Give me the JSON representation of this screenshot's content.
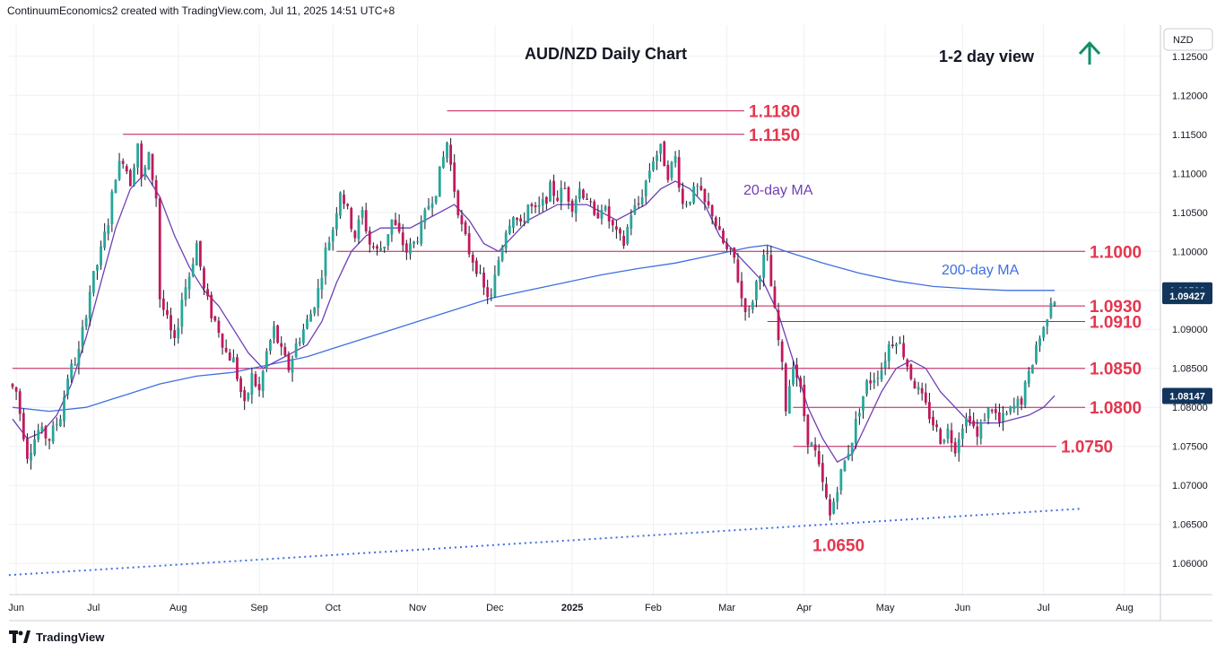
{
  "header": {
    "attribution": "ContinuumEconomics2 created with TradingView.com, Jul 11, 2025 14:51 UTC+8"
  },
  "footer": {
    "brand": "TradingView"
  },
  "colors": {
    "up": "#26a69a",
    "down": "#c2185b",
    "wick": "#131722",
    "level": "#c2185b",
    "level_text": "#e5364f",
    "ma20": "#6f3fb5",
    "ma200": "#3f6fe0",
    "trend": "#3f6fe0",
    "arrow": "#0f8f6a",
    "grid": "#eef0f3",
    "price_tag": "#12355b"
  },
  "chart_data": {
    "type": "candlestick",
    "title": "AUD/NZD Daily Chart",
    "view_label": "1-2 day view",
    "view_direction": "up",
    "currency": "NZD",
    "y_axis": {
      "ticks": [
        "1.12500",
        "1.12000",
        "1.11500",
        "1.11000",
        "1.10500",
        "1.10000",
        "1.09500",
        "1.09000",
        "1.08500",
        "1.08000",
        "1.07500",
        "1.07000",
        "1.06500",
        "1.06000"
      ],
      "range": [
        1.056,
        1.129
      ]
    },
    "x_axis": {
      "ticks": [
        {
          "label": "Jun",
          "index": 1
        },
        {
          "label": "Jul",
          "index": 22
        },
        {
          "label": "Aug",
          "index": 45
        },
        {
          "label": "Sep",
          "index": 67
        },
        {
          "label": "Oct",
          "index": 87
        },
        {
          "label": "Nov",
          "index": 110
        },
        {
          "label": "Dec",
          "index": 131
        },
        {
          "label": "2025",
          "index": 152
        },
        {
          "label": "Feb",
          "index": 174
        },
        {
          "label": "Mar",
          "index": 194
        },
        {
          "label": "Apr",
          "index": 215
        },
        {
          "label": "May",
          "index": 237
        },
        {
          "label": "Jun",
          "index": 258
        },
        {
          "label": "Jul",
          "index": 280
        },
        {
          "label": "Aug",
          "index": 302
        }
      ]
    },
    "levels": [
      {
        "label": "1.1180",
        "value": 1.118,
        "start_index": 118
      },
      {
        "label": "1.1150",
        "value": 1.115,
        "start_index": 30
      },
      {
        "label": "1.1000",
        "value": 1.1,
        "start_index": 88
      },
      {
        "label": "1.0930",
        "value": 1.093,
        "start_index": 131
      },
      {
        "label": "1.0910",
        "value": 1.091,
        "start_index": 205
      },
      {
        "label": "1.0850",
        "value": 1.085,
        "start_index": 0
      },
      {
        "label": "1.0800",
        "value": 1.08,
        "start_index": 212
      },
      {
        "label": "1.0750",
        "value": 1.075,
        "start_index": 212
      },
      {
        "label": "1.0650",
        "value": 1.065,
        "start_index": 226
      }
    ],
    "trendline": {
      "style": "dotted",
      "from": {
        "index": -1,
        "value": 1.0585
      },
      "to": {
        "index": 290,
        "value": 1.067
      }
    },
    "ma20_label": "20-day MA",
    "ma200_label": "200-day MA",
    "last_price": "1.09427",
    "ma20_last": "1.08147",
    "ma200_last": "1.09500",
    "anchors": [
      [
        0,
        1.083
      ],
      [
        2,
        1.082
      ],
      [
        5,
        1.074
      ],
      [
        8,
        1.077
      ],
      [
        11,
        1.076
      ],
      [
        14,
        1.079
      ],
      [
        16,
        1.084
      ],
      [
        19,
        1.087
      ],
      [
        22,
        1.095
      ],
      [
        25,
        1.1
      ],
      [
        27,
        1.104
      ],
      [
        29,
        1.11
      ],
      [
        31,
        1.112
      ],
      [
        33,
        1.109
      ],
      [
        35,
        1.114
      ],
      [
        36,
        1.109
      ],
      [
        38,
        1.112
      ],
      [
        40,
        1.107
      ],
      [
        41,
        1.094
      ],
      [
        43,
        1.091
      ],
      [
        45,
        1.088
      ],
      [
        47,
        1.094
      ],
      [
        49,
        1.097
      ],
      [
        51,
        1.101
      ],
      [
        53,
        1.095
      ],
      [
        55,
        1.092
      ],
      [
        57,
        1.09
      ],
      [
        59,
        1.087
      ],
      [
        61,
        1.086
      ],
      [
        63,
        1.082
      ],
      [
        64,
        1.08
      ],
      [
        66,
        1.084
      ],
      [
        68,
        1.082
      ],
      [
        70,
        1.087
      ],
      [
        72,
        1.09
      ],
      [
        74,
        1.087
      ],
      [
        76,
        1.085
      ],
      [
        78,
        1.088
      ],
      [
        80,
        1.09
      ],
      [
        82,
        1.092
      ],
      [
        84,
        1.095
      ],
      [
        86,
        1.1
      ],
      [
        88,
        1.103
      ],
      [
        90,
        1.108
      ],
      [
        92,
        1.105
      ],
      [
        94,
        1.102
      ],
      [
        96,
        1.105
      ],
      [
        98,
        1.101
      ],
      [
        100,
        1.1
      ],
      [
        102,
        1.101
      ],
      [
        104,
        1.104
      ],
      [
        106,
        1.102
      ],
      [
        108,
        1.1
      ],
      [
        110,
        1.101
      ],
      [
        112,
        1.103
      ],
      [
        114,
        1.106
      ],
      [
        116,
        1.108
      ],
      [
        118,
        1.112
      ],
      [
        119,
        1.114
      ],
      [
        121,
        1.108
      ],
      [
        123,
        1.103
      ],
      [
        125,
        1.1
      ],
      [
        127,
        1.098
      ],
      [
        129,
        1.095
      ],
      [
        131,
        1.094
      ],
      [
        133,
        1.099
      ],
      [
        135,
        1.103
      ],
      [
        137,
        1.105
      ],
      [
        139,
        1.103
      ],
      [
        141,
        1.106
      ],
      [
        143,
        1.105
      ],
      [
        145,
        1.106
      ],
      [
        147,
        1.108
      ],
      [
        149,
        1.107
      ],
      [
        151,
        1.108
      ],
      [
        153,
        1.106
      ],
      [
        155,
        1.108
      ],
      [
        157,
        1.107
      ],
      [
        159,
        1.104
      ],
      [
        161,
        1.106
      ],
      [
        163,
        1.104
      ],
      [
        165,
        1.102
      ],
      [
        167,
        1.101
      ],
      [
        169,
        1.105
      ],
      [
        171,
        1.106
      ],
      [
        173,
        1.109
      ],
      [
        175,
        1.112
      ],
      [
        177,
        1.113
      ],
      [
        179,
        1.11
      ],
      [
        181,
        1.112
      ],
      [
        183,
        1.106
      ],
      [
        185,
        1.107
      ],
      [
        187,
        1.108
      ],
      [
        189,
        1.106
      ],
      [
        191,
        1.105
      ],
      [
        193,
        1.102
      ],
      [
        195,
        1.1
      ],
      [
        197,
        1.099
      ],
      [
        199,
        1.094
      ],
      [
        201,
        1.092
      ],
      [
        203,
        1.096
      ],
      [
        205,
        1.099
      ],
      [
        206,
        1.099
      ],
      [
        208,
        1.092
      ],
      [
        210,
        1.085
      ],
      [
        211,
        1.08
      ],
      [
        213,
        1.086
      ],
      [
        215,
        1.082
      ],
      [
        217,
        1.076
      ],
      [
        219,
        1.074
      ],
      [
        221,
        1.07
      ],
      [
        223,
        1.066
      ],
      [
        225,
        1.07
      ],
      [
        227,
        1.073
      ],
      [
        229,
        1.076
      ],
      [
        231,
        1.08
      ],
      [
        233,
        1.083
      ],
      [
        235,
        1.084
      ],
      [
        237,
        1.085
      ],
      [
        239,
        1.088
      ],
      [
        241,
        1.089
      ],
      [
        243,
        1.087
      ],
      [
        245,
        1.084
      ],
      [
        247,
        1.082
      ],
      [
        249,
        1.08
      ],
      [
        251,
        1.078
      ],
      [
        253,
        1.076
      ],
      [
        255,
        1.077
      ],
      [
        257,
        1.075
      ],
      [
        259,
        1.078
      ],
      [
        261,
        1.079
      ],
      [
        263,
        1.076
      ],
      [
        265,
        1.079
      ],
      [
        267,
        1.08
      ],
      [
        269,
        1.078
      ],
      [
        271,
        1.079
      ],
      [
        273,
        1.08
      ],
      [
        275,
        1.081
      ],
      [
        277,
        1.084
      ],
      [
        279,
        1.088
      ],
      [
        281,
        1.09
      ],
      [
        282,
        1.092
      ],
      [
        283,
        1.094
      ]
    ],
    "ma20_points": [
      [
        0,
        1.0785
      ],
      [
        4,
        1.076
      ],
      [
        8,
        1.0768
      ],
      [
        12,
        1.079
      ],
      [
        16,
        1.083
      ],
      [
        20,
        1.089
      ],
      [
        24,
        1.096
      ],
      [
        28,
        1.103
      ],
      [
        32,
        1.108
      ],
      [
        36,
        1.11
      ],
      [
        40,
        1.107
      ],
      [
        44,
        1.102
      ],
      [
        48,
        1.098
      ],
      [
        52,
        1.095
      ],
      [
        56,
        1.093
      ],
      [
        60,
        1.09
      ],
      [
        64,
        1.087
      ],
      [
        68,
        1.085
      ],
      [
        72,
        1.086
      ],
      [
        76,
        1.087
      ],
      [
        80,
        1.088
      ],
      [
        84,
        1.091
      ],
      [
        88,
        1.096
      ],
      [
        92,
        1.1
      ],
      [
        96,
        1.102
      ],
      [
        100,
        1.103
      ],
      [
        104,
        1.103
      ],
      [
        108,
        1.103
      ],
      [
        112,
        1.104
      ],
      [
        116,
        1.105
      ],
      [
        120,
        1.106
      ],
      [
        124,
        1.104
      ],
      [
        128,
        1.101
      ],
      [
        132,
        1.1
      ],
      [
        136,
        1.102
      ],
      [
        140,
        1.104
      ],
      [
        144,
        1.105
      ],
      [
        148,
        1.106
      ],
      [
        152,
        1.106
      ],
      [
        156,
        1.106
      ],
      [
        160,
        1.105
      ],
      [
        164,
        1.104
      ],
      [
        168,
        1.105
      ],
      [
        172,
        1.106
      ],
      [
        176,
        1.108
      ],
      [
        180,
        1.109
      ],
      [
        184,
        1.108
      ],
      [
        188,
        1.106
      ],
      [
        192,
        1.102
      ],
      [
        196,
        1.1
      ],
      [
        200,
        1.098
      ],
      [
        204,
        1.096
      ],
      [
        208,
        1.092
      ],
      [
        212,
        1.086
      ],
      [
        216,
        1.08
      ],
      [
        220,
        1.076
      ],
      [
        224,
        1.073
      ],
      [
        228,
        1.074
      ],
      [
        232,
        1.078
      ],
      [
        236,
        1.082
      ],
      [
        240,
        1.085
      ],
      [
        244,
        1.086
      ],
      [
        248,
        1.085
      ],
      [
        252,
        1.082
      ],
      [
        256,
        1.08
      ],
      [
        260,
        1.078
      ],
      [
        264,
        1.078
      ],
      [
        268,
        1.078
      ],
      [
        272,
        1.0785
      ],
      [
        276,
        1.079
      ],
      [
        280,
        1.08
      ],
      [
        283,
        1.0815
      ]
    ],
    "ma200_points": [
      [
        0,
        1.08
      ],
      [
        10,
        1.0795
      ],
      [
        20,
        1.08
      ],
      [
        30,
        1.0815
      ],
      [
        40,
        1.083
      ],
      [
        50,
        1.084
      ],
      [
        60,
        1.0845
      ],
      [
        70,
        1.0855
      ],
      [
        80,
        1.0865
      ],
      [
        90,
        1.088
      ],
      [
        100,
        1.0895
      ],
      [
        110,
        1.091
      ],
      [
        120,
        1.0925
      ],
      [
        130,
        1.094
      ],
      [
        140,
        1.095
      ],
      [
        150,
        1.096
      ],
      [
        160,
        1.097
      ],
      [
        170,
        1.0978
      ],
      [
        180,
        1.0985
      ],
      [
        190,
        1.0995
      ],
      [
        200,
        1.1005
      ],
      [
        205,
        1.1008
      ],
      [
        210,
        1.1
      ],
      [
        220,
        1.0985
      ],
      [
        230,
        1.0972
      ],
      [
        240,
        1.0962
      ],
      [
        250,
        1.0955
      ],
      [
        260,
        1.0952
      ],
      [
        270,
        1.095
      ],
      [
        283,
        1.095
      ]
    ]
  }
}
